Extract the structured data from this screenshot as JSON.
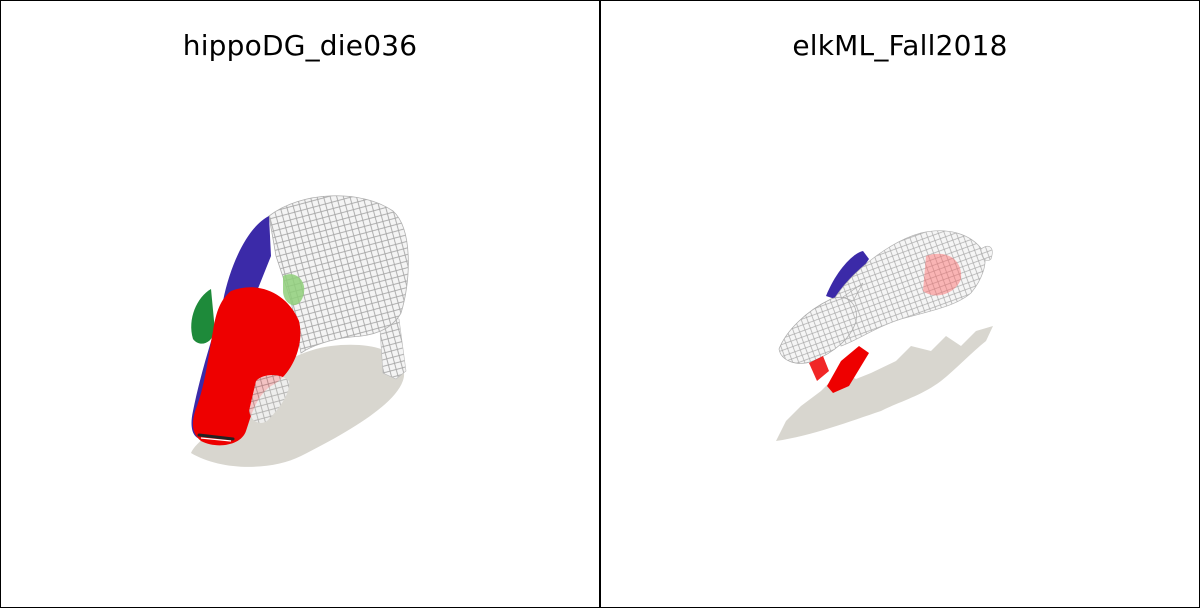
{
  "panels": [
    {
      "title": "hippoDG_die036",
      "subject": "hippo"
    },
    {
      "title": "elkML_Fall2018",
      "subject": "elk"
    }
  ],
  "colors": {
    "shadow": "#d8d6cf",
    "mesh": "#9a9a9a",
    "red": "#ee0000",
    "blue": "#3b2aa8",
    "green": "#1e8a3a",
    "lightgreen": "#8fcf7a",
    "border": "#000000"
  }
}
